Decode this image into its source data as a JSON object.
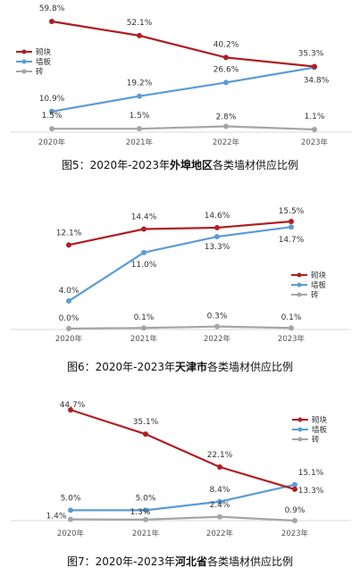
{
  "colors": {
    "red": "#b01e23",
    "blue": "#5b9bd5",
    "gray": "#a5a5a5",
    "axis": "#d9d9d9"
  },
  "chart_data": [
    {
      "type": "line",
      "categories": [
        "2020年",
        "2021年",
        "2022年",
        "2023年"
      ],
      "series": [
        {
          "name": "砌块",
          "values": [
            59.8,
            52.1,
            40.2,
            35.3
          ],
          "labels": [
            "59.8%",
            "52.1%",
            "40.2%",
            "35.3%"
          ],
          "color": "#b01e23"
        },
        {
          "name": "墙板",
          "values": [
            10.9,
            19.2,
            26.6,
            34.8
          ],
          "labels": [
            "10.9%",
            "19.2%",
            "26.6%",
            "34.8%"
          ],
          "color": "#5b9bd5"
        },
        {
          "name": "砖",
          "values": [
            1.5,
            1.5,
            2.8,
            1.1
          ],
          "labels": [
            "1.5%",
            "1.5%",
            "2.8%",
            "1.1%"
          ],
          "color": "#a5a5a5"
        }
      ],
      "legend": "left",
      "title_prefix": "图5：2020年-2023年",
      "title_bold": "外埠地区",
      "title_suffix": "各类墙材供应比例"
    },
    {
      "type": "line",
      "categories": [
        "2020年",
        "2021年",
        "2022年",
        "2023年"
      ],
      "series": [
        {
          "name": "砌块",
          "values": [
            12.1,
            14.4,
            14.6,
            15.5
          ],
          "labels": [
            "12.1%",
            "14.4%",
            "14.6%",
            "15.5%"
          ],
          "color": "#b01e23"
        },
        {
          "name": "墙板",
          "values": [
            4.0,
            11.0,
            13.3,
            14.7
          ],
          "labels": [
            "4.0%",
            "11.0%",
            "13.3%",
            "14.7%"
          ],
          "color": "#5b9bd5"
        },
        {
          "name": "砖",
          "values": [
            0.0,
            0.1,
            0.3,
            0.1
          ],
          "labels": [
            "0.0%",
            "0.1%",
            "0.3%",
            "0.1%"
          ],
          "color": "#a5a5a5"
        }
      ],
      "legend": "right",
      "title_prefix": "图6：2020年-2023年",
      "title_bold": "天津市",
      "title_suffix": "各类墙材供应比例"
    },
    {
      "type": "line",
      "categories": [
        "2020年",
        "2021年",
        "2022年",
        "2023年"
      ],
      "series": [
        {
          "name": "砌块",
          "values": [
            44.7,
            35.1,
            22.1,
            13.3
          ],
          "labels": [
            "44.7%",
            "35.1%",
            "22.1%",
            "13.3%"
          ],
          "color": "#b01e23"
        },
        {
          "name": "墙板",
          "values": [
            5.0,
            5.0,
            8.4,
            15.1
          ],
          "labels": [
            "5.0%",
            "5.0%",
            "8.4%",
            "15.1%"
          ],
          "color": "#5b9bd5"
        },
        {
          "name": "砖",
          "values": [
            1.4,
            1.3,
            2.4,
            0.9
          ],
          "labels": [
            "1.4%",
            "1.3%",
            "2.4%",
            "0.9%"
          ],
          "color": "#a5a5a5"
        }
      ],
      "legend": "right",
      "title_prefix": "图7：2020年-2023年",
      "title_bold": "河北省",
      "title_suffix": "各类墙材供应比例"
    }
  ]
}
